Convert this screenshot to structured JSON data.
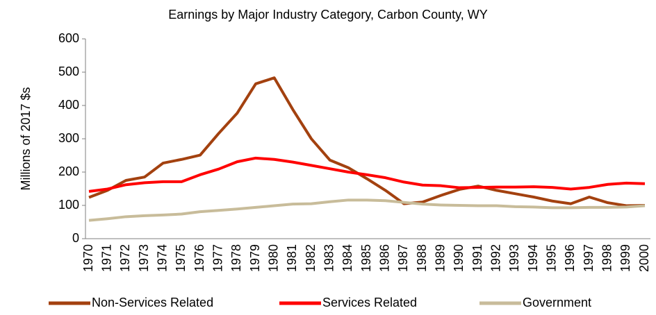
{
  "chart_data": {
    "type": "line",
    "title": "Earnings by Major Industry Category, Carbon County, WY",
    "y_label": "Millions of 2017 $s",
    "categories": [
      "1970",
      "1971",
      "1972",
      "1973",
      "1974",
      "1975",
      "1976",
      "1977",
      "1978",
      "1979",
      "1980",
      "1981",
      "1982",
      "1983",
      "1984",
      "1985",
      "1986",
      "1987",
      "1988",
      "1989",
      "1990",
      "1991",
      "1992",
      "1993",
      "1994",
      "1995",
      "1996",
      "1997",
      "1998",
      "1999",
      "2000"
    ],
    "series": [
      {
        "name": "Non-Services Related",
        "color": "#a3410f",
        "values": [
          124,
          145,
          175,
          185,
          227,
          238,
          251,
          316,
          377,
          465,
          483,
          388,
          300,
          236,
          213,
          180,
          145,
          105,
          110,
          130,
          148,
          158,
          145,
          135,
          125,
          113,
          105,
          125,
          108,
          99,
          100
        ]
      },
      {
        "name": "Services Related",
        "color": "#ff0000",
        "values": [
          142,
          149,
          162,
          168,
          171,
          171,
          192,
          209,
          231,
          242,
          238,
          230,
          220,
          210,
          200,
          192,
          183,
          170,
          161,
          159,
          153,
          154,
          155,
          155,
          156,
          154,
          149,
          154,
          163,
          167,
          165
        ]
      },
      {
        "name": "Government",
        "color": "#c8bc9a",
        "values": [
          55,
          60,
          66,
          69,
          71,
          74,
          81,
          85,
          89,
          94,
          99,
          104,
          105,
          111,
          116,
          116,
          114,
          109,
          104,
          101,
          100,
          99,
          99,
          96,
          95,
          93,
          93,
          94,
          94,
          95,
          99
        ]
      }
    ],
    "ylim": [
      0,
      600
    ],
    "yticks": [
      0,
      100,
      200,
      300,
      400,
      500,
      600
    ],
    "grid": false
  }
}
